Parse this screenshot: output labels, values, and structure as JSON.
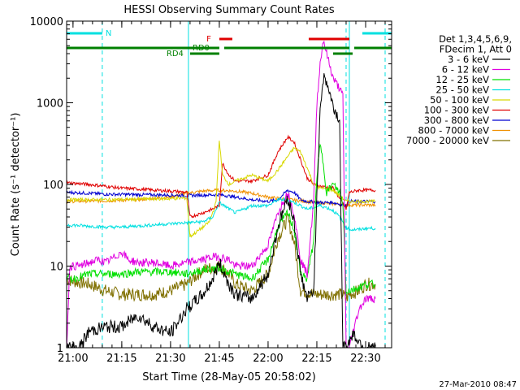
{
  "chart_data": {
    "type": "line",
    "title": "HESSI Observing Summary Count Rates",
    "xlabel": "Start Time (28-May-05 20:58:02)",
    "ylabel": "Count Rate (s⁻¹ detector⁻¹)",
    "y_scale": "log",
    "ylim": [
      1,
      10000
    ],
    "xlim": [
      "20:58:02",
      "22:38:00"
    ],
    "x_ticks": [
      "21:00",
      "21:15",
      "21:30",
      "21:45",
      "22:00",
      "22:15",
      "22:30"
    ],
    "y_ticks": [
      "1",
      "10",
      "100",
      "1000",
      "10000"
    ],
    "footer": "27-Mar-2010 08:47",
    "legend": {
      "placement": "right",
      "header": [
        "Det 1,3,4,5,6,9,",
        "FDecim 1, Att 0"
      ],
      "entries": [
        {
          "label": "3 - 6 keV",
          "color": "#000000"
        },
        {
          "label": "6 - 12 keV",
          "color": "#e000e0"
        },
        {
          "label": "12 - 25 keV",
          "color": "#00e000"
        },
        {
          "label": "25 - 50 keV",
          "color": "#00e0e0"
        },
        {
          "label": "50 - 100 keV",
          "color": "#d8d800"
        },
        {
          "label": "100 - 300 keV",
          "color": "#e00000"
        },
        {
          "label": "300 - 800 keV",
          "color": "#0000d0"
        },
        {
          "label": "800 - 7000 keV",
          "color": "#f09000"
        },
        {
          "label": "7000 - 20000 keV",
          "color": "#807000"
        }
      ]
    },
    "flags": [
      {
        "label": "N",
        "color": "#00e0e0",
        "segments": [
          [
            "20:58:02",
            "21:09:00"
          ],
          [
            "22:29:00",
            "22:38:00"
          ]
        ]
      },
      {
        "label": "F",
        "color": "#e00000",
        "segments": [
          [
            "21:45:00",
            "21:49:00"
          ],
          [
            "22:12:30",
            "22:25:00"
          ]
        ]
      },
      {
        "label": "RD0",
        "color": "#008000",
        "segments": [
          [
            "20:58:02",
            "21:45:00"
          ],
          [
            "21:46:30",
            "22:25:00"
          ],
          [
            "22:26:30",
            "22:38:00"
          ]
        ]
      },
      {
        "label": "RD4",
        "color": "#008000",
        "segments": [
          [
            "21:36:00",
            "21:45:00"
          ],
          [
            "22:20:00",
            "22:26:00"
          ]
        ]
      }
    ],
    "event_markers": {
      "solid": [
        "21:35:30",
        "22:25:00"
      ],
      "dashed": [
        "21:09:00",
        "22:24:00",
        "22:36:00"
      ]
    },
    "series": [
      {
        "name": "3 - 6 keV",
        "color": "#000000",
        "x": [
          "20:58:02",
          "21:00",
          "21:02",
          "21:05",
          "21:10",
          "21:15",
          "21:20",
          "21:25",
          "21:30",
          "21:35",
          "21:40",
          "21:43",
          "21:45",
          "21:48",
          "21:50",
          "21:55",
          "22:00",
          "22:03",
          "22:06",
          "22:08",
          "22:10",
          "22:12",
          "22:14",
          "22:16",
          "22:17",
          "22:18",
          "22:20",
          "22:22",
          "22:23",
          "22:24",
          "22:25",
          "22:26",
          "22:28",
          "22:30",
          "22:33"
        ],
        "y": [
          1,
          1,
          1,
          1.6,
          1.8,
          1.8,
          2.5,
          1.8,
          1.5,
          3,
          4.5,
          7,
          11,
          6,
          4.5,
          4,
          8,
          30,
          70,
          35,
          8,
          4,
          5,
          900,
          2000,
          1800,
          900,
          600,
          1,
          1,
          1.2,
          1.5,
          1.2,
          1,
          1
        ]
      },
      {
        "name": "6 - 12 keV",
        "color": "#e000e0",
        "x": [
          "20:58:02",
          "20:59",
          "21:02",
          "21:05",
          "21:08",
          "21:10",
          "21:13",
          "21:15",
          "21:17",
          "21:20",
          "21:25",
          "21:30",
          "21:35",
          "21:40",
          "21:43",
          "21:45",
          "21:48",
          "21:50",
          "21:55",
          "22:00",
          "22:03",
          "22:06",
          "22:08",
          "22:10",
          "22:12",
          "22:14",
          "22:15",
          "22:16",
          "22:17",
          "22:18",
          "22:20",
          "22:22",
          "22:23",
          "22:24",
          "22:25",
          "22:26",
          "22:28",
          "22:30",
          "22:33"
        ],
        "y": [
          1,
          10,
          10,
          11,
          12,
          11,
          13,
          15,
          12,
          11,
          11,
          10,
          11,
          12,
          13,
          13,
          12,
          10,
          10,
          18,
          45,
          80,
          45,
          12,
          8,
          60,
          1000,
          3000,
          6000,
          4000,
          2000,
          1500,
          1200,
          1,
          1,
          1.5,
          3,
          4,
          4
        ]
      },
      {
        "name": "12 - 25 keV",
        "color": "#00e000",
        "x": [
          "20:58:02",
          "21:00",
          "21:05",
          "21:10",
          "21:15",
          "21:20",
          "21:25",
          "21:30",
          "21:35",
          "21:40",
          "21:45",
          "21:48",
          "21:50",
          "21:55",
          "22:00",
          "22:03",
          "22:06",
          "22:08",
          "22:10",
          "22:12",
          "22:14",
          "22:15",
          "22:16",
          "22:17",
          "22:18",
          "22:20",
          "22:22",
          "22:23",
          "22:24",
          "22:25",
          "22:28",
          "22:30",
          "22:33"
        ],
        "y": [
          7,
          7,
          8,
          8,
          8,
          8.5,
          8.5,
          8.5,
          8,
          9,
          9.5,
          8.5,
          8,
          7,
          12,
          30,
          45,
          28,
          8,
          7,
          20,
          130,
          300,
          180,
          80,
          100,
          80,
          60,
          5,
          5,
          5.5,
          6,
          6
        ]
      },
      {
        "name": "25 - 50 keV",
        "color": "#00e0e0",
        "x": [
          "20:58:02",
          "21:10",
          "21:15",
          "21:20",
          "21:25",
          "21:30",
          "21:35",
          "21:40",
          "21:43",
          "21:45",
          "21:48",
          "21:50",
          "21:55",
          "22:00",
          "22:03",
          "22:06",
          "22:08",
          "22:10",
          "22:12",
          "22:14",
          "22:16",
          "22:18",
          "22:20",
          "22:22",
          "22:24",
          "22:25",
          "22:28",
          "22:30",
          "22:33"
        ],
        "y": [
          32,
          30,
          30,
          31,
          32,
          33,
          34,
          35,
          40,
          60,
          50,
          45,
          55,
          55,
          65,
          65,
          60,
          55,
          50,
          52,
          55,
          52,
          48,
          40,
          30,
          28,
          28,
          29,
          29
        ]
      },
      {
        "name": "50 - 100 keV",
        "color": "#d8d800",
        "x": [
          "20:58:02",
          "21:10",
          "21:20",
          "21:30",
          "21:35",
          "21:36",
          "21:40",
          "21:42",
          "21:44",
          "21:45",
          "21:46",
          "21:48",
          "21:50",
          "21:55",
          "22:00",
          "22:03",
          "22:06",
          "22:08",
          "22:10",
          "22:12",
          "22:14",
          "22:16",
          "22:20",
          "22:24",
          "22:25",
          "22:28",
          "22:30",
          "22:33"
        ],
        "y": [
          65,
          65,
          66,
          67,
          68,
          23,
          30,
          35,
          60,
          350,
          130,
          100,
          110,
          130,
          110,
          150,
          220,
          280,
          250,
          160,
          100,
          90,
          85,
          62,
          62,
          62,
          62,
          62
        ]
      },
      {
        "name": "100 - 300 keV",
        "color": "#e00000",
        "x": [
          "20:58:02",
          "21:05",
          "21:10",
          "21:15",
          "21:20",
          "21:25",
          "21:30",
          "21:35",
          "21:36",
          "21:40",
          "21:43",
          "21:45",
          "21:46",
          "21:48",
          "21:50",
          "21:55",
          "22:00",
          "22:03",
          "22:06",
          "22:08",
          "22:10",
          "22:12",
          "22:14",
          "22:16",
          "22:20",
          "22:24",
          "22:25",
          "22:28",
          "22:30",
          "22:33"
        ],
        "y": [
          105,
          100,
          95,
          90,
          88,
          85,
          83,
          80,
          40,
          45,
          50,
          55,
          180,
          130,
          110,
          110,
          130,
          250,
          380,
          330,
          200,
          120,
          100,
          95,
          90,
          50,
          80,
          85,
          85,
          85
        ]
      },
      {
        "name": "300 - 800 keV",
        "color": "#0000d0",
        "x": [
          "20:58:02",
          "21:05",
          "21:10",
          "21:20",
          "21:30",
          "21:35",
          "21:40",
          "21:45",
          "21:50",
          "21:55",
          "22:00",
          "22:03",
          "22:06",
          "22:08",
          "22:10",
          "22:12",
          "22:16",
          "22:20",
          "22:24",
          "22:25",
          "22:28",
          "22:30",
          "22:33"
        ],
        "y": [
          80,
          78,
          76,
          75,
          74,
          73,
          74,
          75,
          70,
          65,
          62,
          65,
          85,
          80,
          65,
          62,
          60,
          60,
          55,
          62,
          62,
          62,
          62
        ]
      },
      {
        "name": "800 - 7000 keV",
        "color": "#f09000",
        "x": [
          "20:58:02",
          "21:10",
          "21:20",
          "21:30",
          "21:35",
          "21:40",
          "21:45",
          "21:50",
          "21:55",
          "22:00",
          "22:05",
          "22:10",
          "22:15",
          "22:20",
          "22:24",
          "22:25",
          "22:30",
          "22:33"
        ],
        "y": [
          62,
          63,
          65,
          70,
          78,
          83,
          85,
          83,
          78,
          70,
          66,
          63,
          60,
          58,
          56,
          56,
          56,
          56
        ]
      },
      {
        "name": "7000 - 20000 keV",
        "color": "#807000",
        "x": [
          "20:58:02",
          "21:00",
          "21:05",
          "21:10",
          "21:15",
          "21:20",
          "21:25",
          "21:30",
          "21:35",
          "21:40",
          "21:45",
          "21:48",
          "21:50",
          "21:55",
          "22:00",
          "22:03",
          "22:06",
          "22:08",
          "22:10",
          "22:15",
          "22:20",
          "22:23",
          "22:24",
          "22:25",
          "22:28",
          "22:30",
          "22:33"
        ],
        "y": [
          7,
          6.5,
          6,
          5,
          4.5,
          4.5,
          4.5,
          5,
          6,
          9,
          10,
          8,
          6,
          5,
          8,
          22,
          38,
          20,
          5,
          4.5,
          4.5,
          4.5,
          4,
          4.5,
          5,
          6,
          6
        ]
      }
    ]
  }
}
